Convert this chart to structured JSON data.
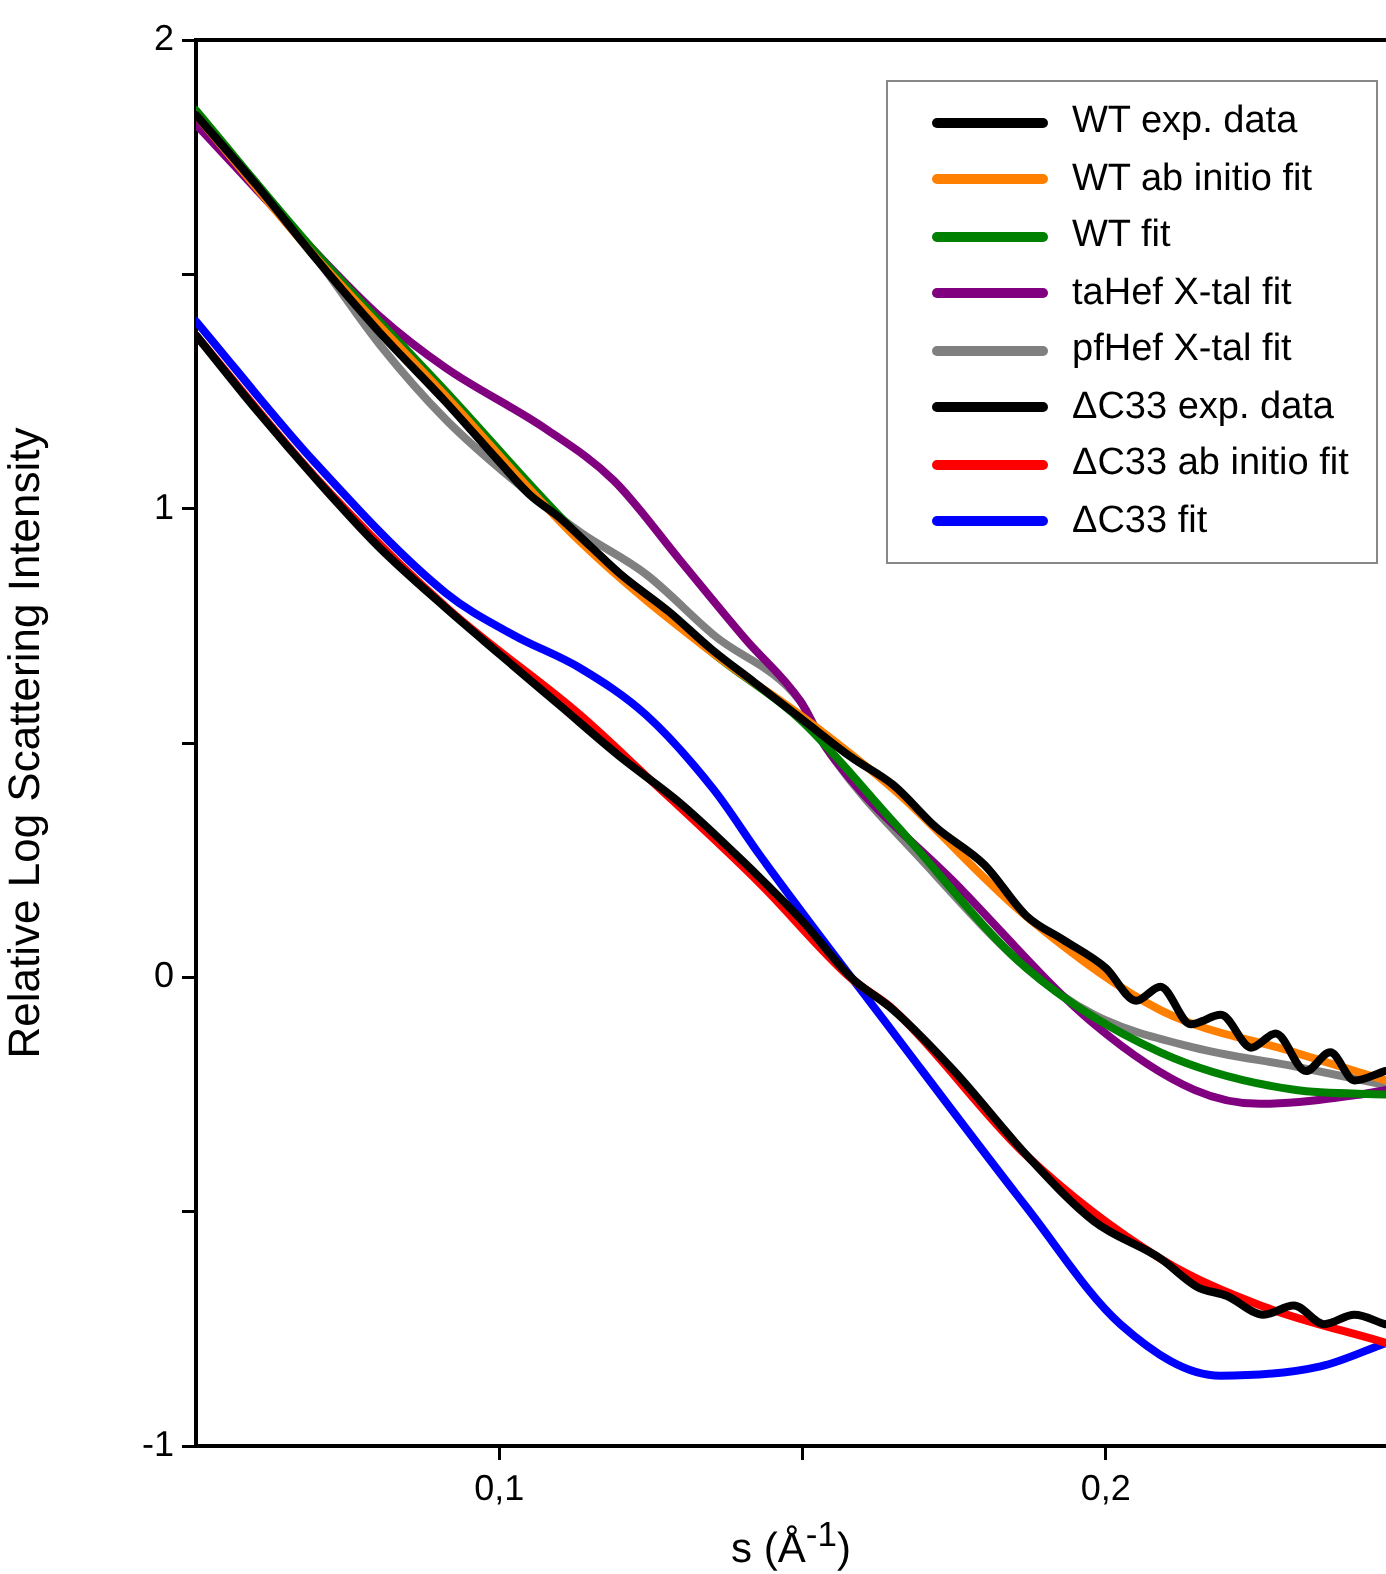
{
  "chart_data": {
    "type": "line",
    "xlabel": "s (Å$^{-1}$)",
    "ylabel": "Relative Log Scattering Intensity",
    "xlim": [
      0.05,
      0.2462
    ],
    "xticks": [
      {
        "value": 0.1,
        "label": "0,1"
      },
      {
        "value": 0.15,
        "label": null
      },
      {
        "value": 0.2,
        "label": "0,2"
      }
    ],
    "ylim": [
      -1,
      2
    ],
    "yticks": [
      -1,
      {
        "value": -0.5,
        "label": null
      },
      0,
      {
        "value": 0.5,
        "label": null
      },
      1,
      {
        "value": 1.5,
        "label": null
      },
      2
    ],
    "grid": false,
    "legend": "top right",
    "marker": "none",
    "line_style": "solid",
    "series": [
      {
        "name": "WT exp. data",
        "color": "#000000",
        "x": [
          0.05,
          0.06,
          0.07,
          0.08,
          0.091,
          0.1,
          0.105,
          0.11,
          0.115,
          0.12,
          0.128,
          0.135,
          0.142,
          0.15,
          0.158,
          0.165,
          0.172,
          0.18,
          0.187,
          0.193,
          0.2,
          0.205,
          0.209,
          0.214,
          0.219,
          0.224,
          0.228,
          0.233,
          0.237,
          0.241,
          0.246
        ],
        "values": [
          1.84,
          1.69,
          1.53,
          1.38,
          1.23,
          1.1,
          1.03,
          0.98,
          0.92,
          0.86,
          0.78,
          0.7,
          0.63,
          0.55,
          0.47,
          0.41,
          0.32,
          0.24,
          0.13,
          0.08,
          0.02,
          -0.05,
          -0.02,
          -0.1,
          -0.08,
          -0.15,
          -0.12,
          -0.2,
          -0.16,
          -0.22,
          -0.2
        ]
      },
      {
        "name": "WT ab initio fit",
        "color": "#ff8000",
        "x": [
          0.05,
          0.0695,
          0.0912,
          0.1133,
          0.1354,
          0.1496,
          0.1651,
          0.1869,
          0.209,
          0.2311,
          0.2462
        ],
        "values": [
          1.84,
          1.54,
          1.24,
          0.93,
          0.69,
          0.56,
          0.4,
          0.13,
          -0.07,
          -0.16,
          -0.22
        ]
      },
      {
        "name": "WT fit",
        "color": "#008000",
        "x": [
          0.05,
          0.0695,
          0.0912,
          0.1133,
          0.1354,
          0.1496,
          0.1651,
          0.1869,
          0.209,
          0.2311,
          0.2462
        ],
        "values": [
          1.85,
          1.55,
          1.25,
          0.94,
          0.69,
          0.55,
          0.33,
          0.02,
          -0.16,
          -0.24,
          -0.25
        ]
      },
      {
        "name": "taHef X-tal fit",
        "color": "#800080",
        "x": [
          0.05,
          0.0695,
          0.0803,
          0.0912,
          0.1077,
          0.1189,
          0.1298,
          0.1407,
          0.1496,
          0.1539,
          0.176,
          0.1981,
          0.2146,
          0.2255,
          0.242,
          0.2462
        ],
        "values": [
          1.82,
          1.55,
          1.41,
          1.3,
          1.17,
          1.06,
          0.89,
          0.72,
          0.59,
          0.49,
          0.19,
          -0.1,
          -0.24,
          -0.27,
          -0.25,
          -0.24
        ]
      },
      {
        "name": "pfHef X-tal fit",
        "color": "#808080",
        "x": [
          0.05,
          0.0695,
          0.0803,
          0.0912,
          0.1024,
          0.1133,
          0.1242,
          0.1354,
          0.1496,
          0.1539,
          0.1704,
          0.1869,
          0.1981,
          0.2146,
          0.2311,
          0.2462
        ],
        "values": [
          1.84,
          1.54,
          1.35,
          1.19,
          1.06,
          0.95,
          0.86,
          0.73,
          0.59,
          0.49,
          0.24,
          0.02,
          -0.08,
          -0.15,
          -0.19,
          -0.23
        ]
      },
      {
        "name": "ΔC33 exp. data",
        "color": "#000000",
        "x": [
          0.05,
          0.06,
          0.07,
          0.08,
          0.091,
          0.1,
          0.11,
          0.12,
          0.13,
          0.14,
          0.15,
          0.158,
          0.165,
          0.175,
          0.187,
          0.198,
          0.209,
          0.215,
          0.22,
          0.226,
          0.231,
          0.236,
          0.241,
          0.246
        ],
        "values": [
          1.37,
          1.21,
          1.06,
          0.92,
          0.79,
          0.69,
          0.58,
          0.47,
          0.37,
          0.25,
          0.12,
          0.0,
          -0.07,
          -0.2,
          -0.38,
          -0.52,
          -0.6,
          -0.66,
          -0.68,
          -0.72,
          -0.7,
          -0.74,
          -0.72,
          -0.74
        ]
      },
      {
        "name": "ΔC33 ab initio fit",
        "color": "#ff0000",
        "x": [
          0.05,
          0.0695,
          0.0912,
          0.1133,
          0.1242,
          0.143,
          0.1578,
          0.1651,
          0.1869,
          0.209,
          0.2255,
          0.2462
        ],
        "values": [
          1.37,
          1.07,
          0.79,
          0.56,
          0.43,
          0.2,
          0.0,
          -0.07,
          -0.38,
          -0.6,
          -0.7,
          -0.78
        ]
      },
      {
        "name": "ΔC33 fit",
        "color": "#0000ff",
        "x": [
          0.05,
          0.0695,
          0.0912,
          0.1024,
          0.1133,
          0.1242,
          0.1354,
          0.143,
          0.1651,
          0.1869,
          0.2024,
          0.2189,
          0.2354,
          0.2462
        ],
        "values": [
          1.4,
          1.1,
          0.82,
          0.73,
          0.66,
          0.56,
          0.4,
          0.26,
          -0.12,
          -0.49,
          -0.74,
          -0.85,
          -0.83,
          -0.78
        ]
      }
    ]
  }
}
